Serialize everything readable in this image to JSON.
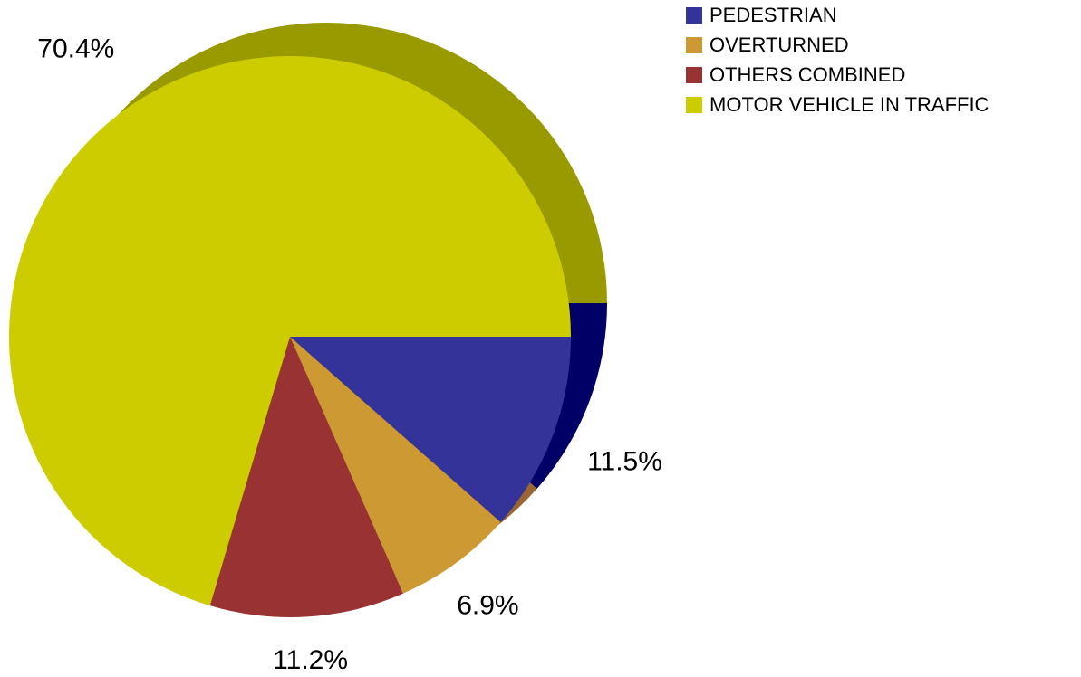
{
  "chart_data": {
    "type": "pie",
    "categories": [
      "PEDESTRIAN",
      "OVERTURNED",
      "OTHERS COMBINED",
      "MOTOR VEHICLE IN TRAFFIC"
    ],
    "values": [
      11.5,
      6.9,
      11.2,
      70.4
    ],
    "value_labels": [
      "11.5%",
      "6.9%",
      "11.2%",
      "70.4%"
    ],
    "colors": [
      "#333399",
      "#cc9933",
      "#993333",
      "#cccc00"
    ],
    "depth_colors": [
      "#000066",
      "#996633",
      "#663333",
      "#999900"
    ],
    "legend": "top-right"
  }
}
